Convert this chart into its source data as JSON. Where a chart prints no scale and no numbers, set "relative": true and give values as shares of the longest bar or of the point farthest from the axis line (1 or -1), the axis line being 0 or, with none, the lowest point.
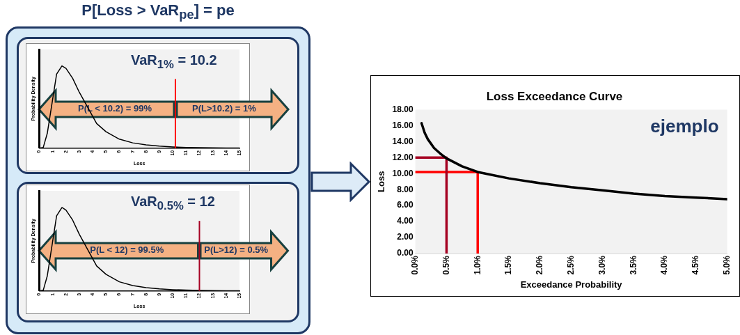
{
  "chart_data": [
    {
      "type": "line",
      "title": "P[Loss > VaR$_{pe}$] = pe",
      "xlabel": "Loss",
      "ylabel": "Probability Density",
      "relative": true,
      "grid": false,
      "x": [
        0,
        0.3,
        0.6,
        1.3,
        1.7,
        2,
        2.5,
        3,
        4.3,
        5,
        6,
        7,
        8,
        9,
        10,
        11,
        12,
        13,
        14,
        15
      ],
      "xlim": [
        0,
        15
      ],
      "xticks": [
        0,
        1,
        2,
        3,
        4,
        5,
        6,
        7,
        8,
        9,
        10,
        11,
        12,
        13,
        14,
        15
      ],
      "series": [
        {
          "color": "#000000",
          "values": [
            0,
            0.01,
            0.18,
            0.9,
            1,
            0.97,
            0.85,
            0.68,
            0.3,
            0.2,
            0.11,
            0.065,
            0.04,
            0.025,
            0.016,
            0.01,
            0.007,
            0.005,
            0.003,
            0.002
          ]
        }
      ],
      "ref_lines": [
        {
          "axis": "x",
          "value": 10.2,
          "color": "#ff0000"
        }
      ],
      "annotations": [
        "VaR$_{1%}$ = 10.2",
        "P(L < 10.2) = 99%",
        "P(L>10.2) = 1%"
      ]
    },
    {
      "type": "line",
      "xlabel": "Loss",
      "ylabel": "Probability Density",
      "relative": true,
      "grid": false,
      "x": [
        0,
        0.3,
        0.6,
        1.3,
        1.7,
        2,
        2.5,
        3,
        4.3,
        5,
        6,
        7,
        8,
        9,
        10,
        11,
        12,
        13,
        14,
        15
      ],
      "xlim": [
        0,
        15
      ],
      "xticks": [
        0,
        1,
        2,
        3,
        4,
        5,
        6,
        7,
        8,
        9,
        10,
        11,
        12,
        13,
        14,
        15
      ],
      "series": [
        {
          "color": "#000000",
          "values": [
            0,
            0.01,
            0.18,
            0.9,
            1,
            0.97,
            0.85,
            0.68,
            0.3,
            0.2,
            0.11,
            0.065,
            0.04,
            0.025,
            0.016,
            0.01,
            0.007,
            0.005,
            0.003,
            0.002
          ]
        }
      ],
      "ref_lines": [
        {
          "axis": "x",
          "value": 12,
          "color": "#a50021"
        }
      ],
      "annotations": [
        "VaR$_{0.5%}$ = 12",
        "P(L < 12) = 99.5%",
        "P(L>12) = 0.5%"
      ]
    },
    {
      "type": "line",
      "title": "Loss Exceedance Curve",
      "xlabel": "Exceedance Probability",
      "ylabel": "Loss",
      "grid": false,
      "xlim": [
        0,
        5
      ],
      "xticks": [
        {
          "value": 0,
          "label": "0.0%"
        },
        {
          "value": 0.5,
          "label": "0.5%"
        },
        {
          "value": 1,
          "label": "1.0%"
        },
        {
          "value": 1.5,
          "label": "1.5%"
        },
        {
          "value": 2,
          "label": "2.0%"
        },
        {
          "value": 2.5,
          "label": "2.5%"
        },
        {
          "value": 3,
          "label": "3.0%"
        },
        {
          "value": 3.5,
          "label": "3.5%"
        },
        {
          "value": 4,
          "label": "4.0%"
        },
        {
          "value": 4.5,
          "label": "4.5%"
        },
        {
          "value": 5,
          "label": "5.0%"
        }
      ],
      "ylim": [
        0,
        18
      ],
      "yticks": [
        {
          "value": 0,
          "label": "0.00"
        },
        {
          "value": 2,
          "label": "2.00"
        },
        {
          "value": 4,
          "label": "4.00"
        },
        {
          "value": 6,
          "label": "6.00"
        },
        {
          "value": 8,
          "label": "8.00"
        },
        {
          "value": 10,
          "label": "10.00"
        },
        {
          "value": 12,
          "label": "12.00"
        },
        {
          "value": 14,
          "label": "14.00"
        },
        {
          "value": 16,
          "label": "16.00"
        },
        {
          "value": 18,
          "label": "18.00"
        }
      ],
      "series": [
        {
          "color": "#000000",
          "x": [
            0.1,
            0.15,
            0.2,
            0.3,
            0.4,
            0.5,
            0.75,
            1,
            1.5,
            2,
            2.5,
            3,
            3.5,
            4,
            4.5,
            5
          ],
          "values": [
            16.3,
            15.1,
            14.3,
            13.2,
            12.5,
            11.9,
            10.9,
            10.2,
            9.4,
            8.8,
            8.3,
            7.9,
            7.5,
            7.2,
            7,
            6.8
          ]
        },
        {
          "color": "#a50021",
          "x": [
            0,
            0.5,
            0.5
          ],
          "values": [
            12,
            12,
            0
          ]
        },
        {
          "color": "#ff0000",
          "x": [
            0,
            1,
            1
          ],
          "values": [
            10.2,
            10.2,
            0
          ]
        }
      ],
      "annotations": [
        "ejemplo"
      ]
    }
  ]
}
